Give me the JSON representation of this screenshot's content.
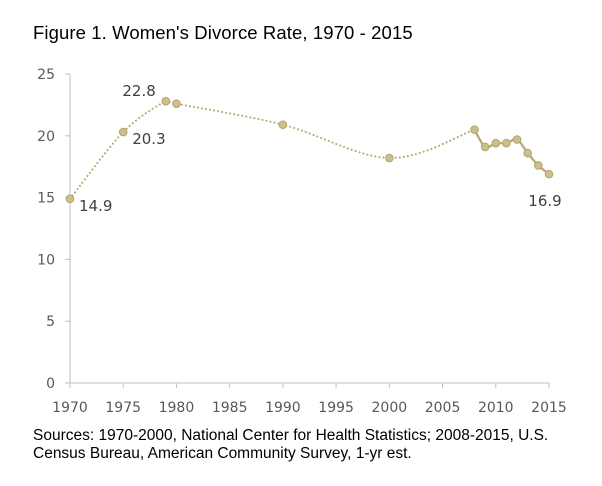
{
  "chart_data": {
    "type": "line",
    "title": "Figure 1. Women's Divorce Rate, 1970 - 2015",
    "x_ticks": [
      1970,
      1975,
      1980,
      1985,
      1990,
      1995,
      2000,
      2005,
      2010,
      2015
    ],
    "y_ticks": [
      0,
      5,
      10,
      15,
      20,
      25
    ],
    "xlim": [
      1970,
      2015
    ],
    "ylim": [
      0,
      25
    ],
    "grid": false,
    "series": [
      {
        "style": "dotted",
        "points": [
          {
            "x": 1970,
            "y": 14.9
          },
          {
            "x": 1975,
            "y": 20.3
          },
          {
            "x": 1979,
            "y": 22.8
          },
          {
            "x": 1980,
            "y": 22.6
          },
          {
            "x": 1990,
            "y": 20.9
          },
          {
            "x": 2000,
            "y": 18.2
          },
          {
            "x": 2008,
            "y": 20.5
          }
        ]
      },
      {
        "style": "solid",
        "points": [
          {
            "x": 2008,
            "y": 20.5
          },
          {
            "x": 2009,
            "y": 19.1
          },
          {
            "x": 2010,
            "y": 19.4
          },
          {
            "x": 2011,
            "y": 19.4
          },
          {
            "x": 2012,
            "y": 19.7
          },
          {
            "x": 2013,
            "y": 18.6
          },
          {
            "x": 2014,
            "y": 17.6
          },
          {
            "x": 2015,
            "y": 16.9
          }
        ]
      }
    ],
    "data_labels": [
      {
        "text": "14.9",
        "x": 1970,
        "y": 14.9,
        "anchor": "below-right"
      },
      {
        "text": "20.3",
        "x": 1975,
        "y": 20.3,
        "anchor": "below-right"
      },
      {
        "text": "22.8",
        "x": 1979,
        "y": 22.8,
        "anchor": "above-left"
      },
      {
        "text": "16.9",
        "x": 2015,
        "y": 16.9,
        "anchor": "below"
      }
    ],
    "colors": {
      "marker": "#cdbf8b",
      "marker_stroke": "#b3a46c",
      "line": "#b5a771",
      "axis": "#bfbfbf",
      "tick_text": "#595959",
      "label_text": "#404040"
    }
  },
  "footnote": "Sources: 1970-2000, National Center for Health Statistics; 2008-2015, U.S. Census Bureau, American Community Survey, 1-yr est."
}
